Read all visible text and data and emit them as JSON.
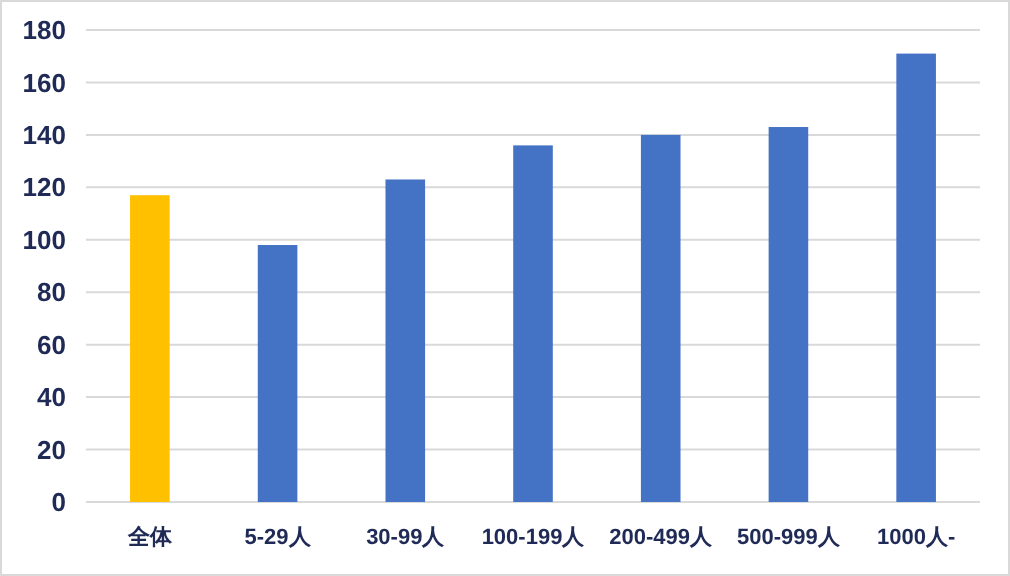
{
  "chart_data": {
    "type": "bar",
    "categories": [
      "全体",
      "5-29人",
      "30-99人",
      "100-199人",
      "200-499人",
      "500-999人",
      "1000人-"
    ],
    "values": [
      117,
      98,
      123,
      136,
      140,
      143,
      171
    ],
    "colors": [
      "#ffc000",
      "#4472c4",
      "#4472c4",
      "#4472c4",
      "#4472c4",
      "#4472c4",
      "#4472c4"
    ],
    "ylim": [
      0,
      180
    ],
    "yticks": [
      0,
      20,
      40,
      60,
      80,
      100,
      120,
      140,
      160,
      180
    ],
    "grid": "y"
  }
}
